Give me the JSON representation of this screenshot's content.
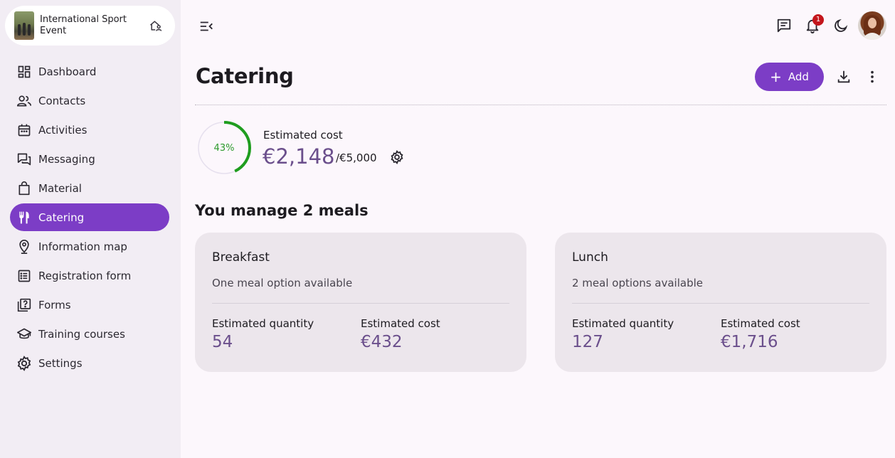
{
  "event": {
    "name": "International Sport Event"
  },
  "nav": {
    "items": [
      {
        "label": "Dashboard",
        "icon": "dashboard-icon"
      },
      {
        "label": "Contacts",
        "icon": "contacts-icon"
      },
      {
        "label": "Activities",
        "icon": "calendar-icon"
      },
      {
        "label": "Messaging",
        "icon": "messaging-icon"
      },
      {
        "label": "Material",
        "icon": "bag-icon"
      },
      {
        "label": "Catering",
        "icon": "utensils-icon",
        "active": true
      },
      {
        "label": "Information map",
        "icon": "map-pin-icon"
      },
      {
        "label": "Registration form",
        "icon": "form-list-icon"
      },
      {
        "label": "Forms",
        "icon": "question-form-icon"
      },
      {
        "label": "Training courses",
        "icon": "graduation-cap-icon"
      },
      {
        "label": "Settings",
        "icon": "gear-icon"
      }
    ]
  },
  "topbar": {
    "notification_count": "1"
  },
  "page": {
    "title": "Catering",
    "add_label": "Add"
  },
  "summary": {
    "percent": 43,
    "percent_label": "43%",
    "label": "Estimated cost",
    "value": "€2,148",
    "total": "/€5,000"
  },
  "section": {
    "title": "You manage 2 meals"
  },
  "meals": [
    {
      "name": "Breakfast",
      "options": "One meal option available",
      "quantity_label": "Estimated quantity",
      "quantity": "54",
      "cost_label": "Estimated cost",
      "cost": "€432"
    },
    {
      "name": "Lunch",
      "options": "2 meal options available",
      "quantity_label": "Estimated quantity",
      "quantity": "127",
      "cost_label": "Estimated cost",
      "cost": "€1,716"
    }
  ],
  "colors": {
    "accent": "#7c3dc6",
    "progress": "#1f9d1f",
    "value_text": "#6b4f8c",
    "badge": "#c4161c"
  }
}
